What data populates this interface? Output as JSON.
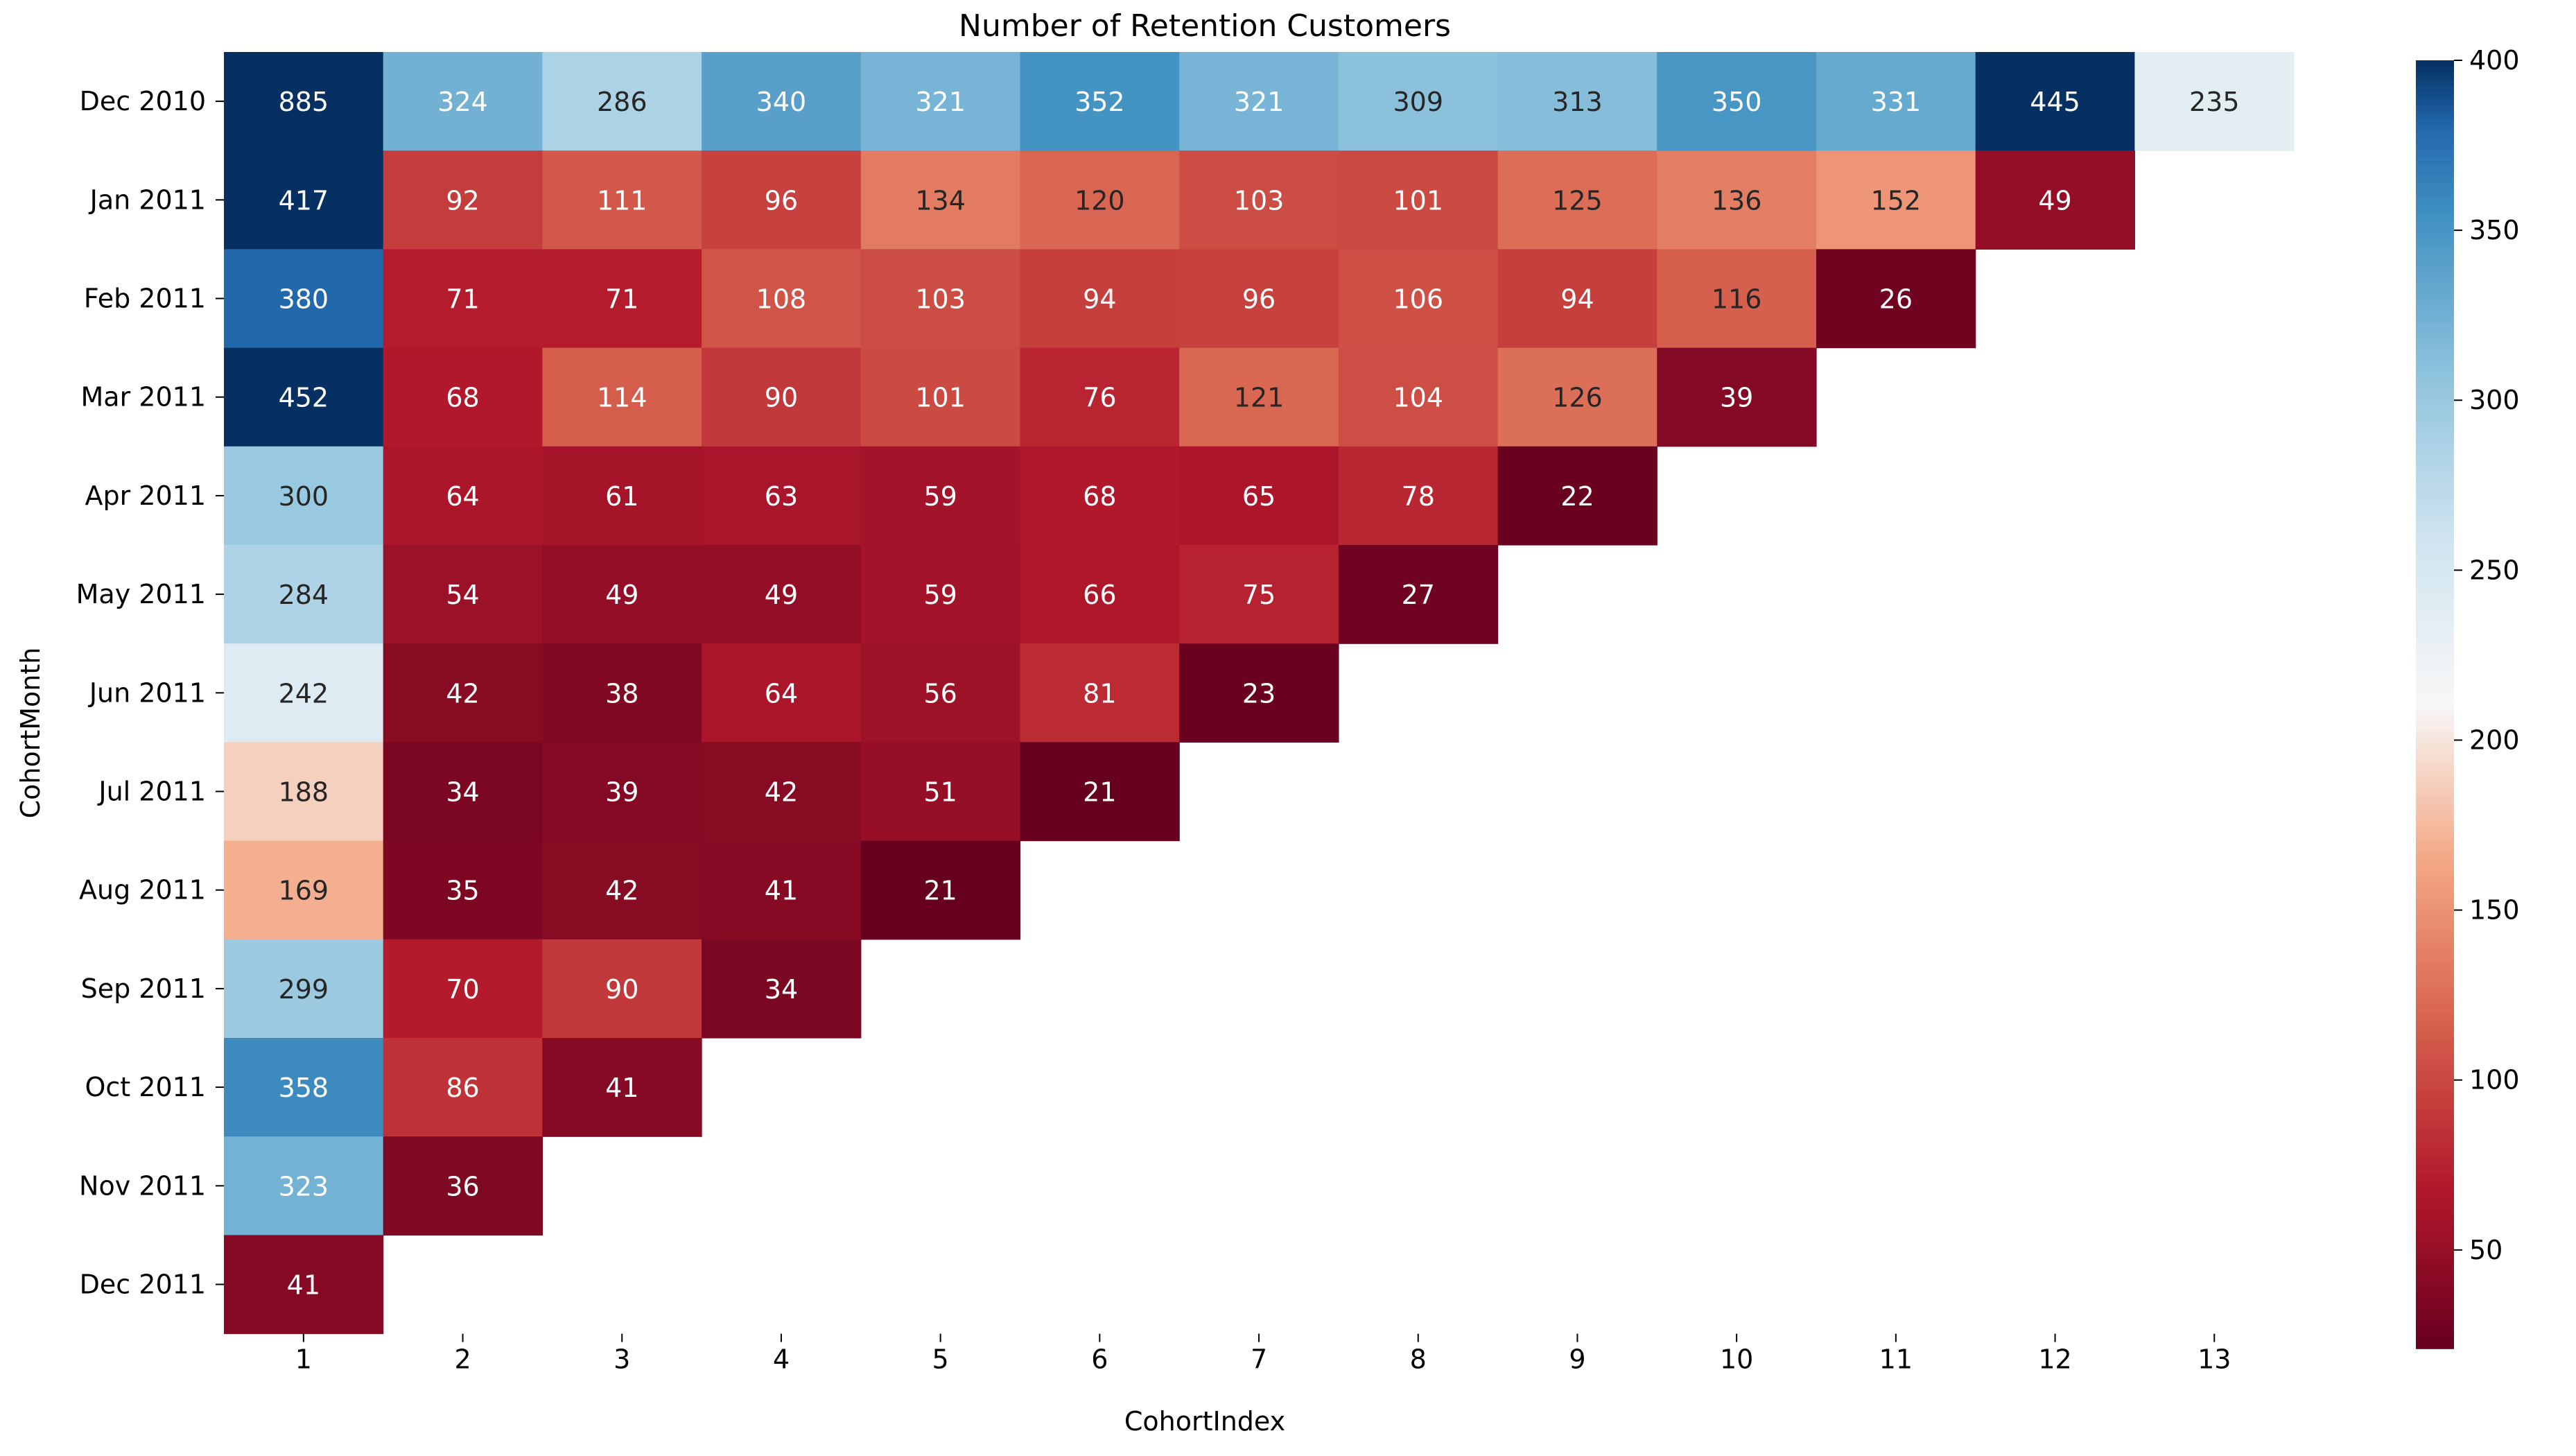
{
  "chart_data": {
    "type": "heatmap",
    "title": "Number of Retention Customers",
    "xlabel": "CohortIndex",
    "ylabel": "CohortMonth",
    "x_categories": [
      "1",
      "2",
      "3",
      "4",
      "5",
      "6",
      "7",
      "8",
      "9",
      "10",
      "11",
      "12",
      "13"
    ],
    "y_categories": [
      "Dec 2010",
      "Jan 2011",
      "Feb 2011",
      "Mar 2011",
      "Apr 2011",
      "May 2011",
      "Jun 2011",
      "Jul 2011",
      "Aug 2011",
      "Sep 2011",
      "Oct 2011",
      "Nov 2011",
      "Dec 2011"
    ],
    "values": [
      [
        885,
        324,
        286,
        340,
        321,
        352,
        321,
        309,
        313,
        350,
        331,
        445,
        235
      ],
      [
        417,
        92,
        111,
        96,
        134,
        120,
        103,
        101,
        125,
        136,
        152,
        49
      ],
      [
        380,
        71,
        71,
        108,
        103,
        94,
        96,
        106,
        94,
        116,
        26
      ],
      [
        452,
        68,
        114,
        90,
        101,
        76,
        121,
        104,
        126,
        39
      ],
      [
        300,
        64,
        61,
        63,
        59,
        68,
        65,
        78,
        22
      ],
      [
        284,
        54,
        49,
        49,
        59,
        66,
        75,
        27
      ],
      [
        242,
        42,
        38,
        64,
        56,
        81,
        23
      ],
      [
        188,
        34,
        39,
        42,
        51,
        21
      ],
      [
        169,
        35,
        42,
        41,
        21
      ],
      [
        299,
        70,
        90,
        34
      ],
      [
        358,
        86,
        41
      ],
      [
        323,
        36
      ],
      [
        41
      ]
    ],
    "colormap": "RdBu",
    "vmin": 21,
    "vmax": 400,
    "colorbar_ticks": [
      50,
      100,
      150,
      200,
      250,
      300,
      350,
      400
    ],
    "grid": false
  }
}
